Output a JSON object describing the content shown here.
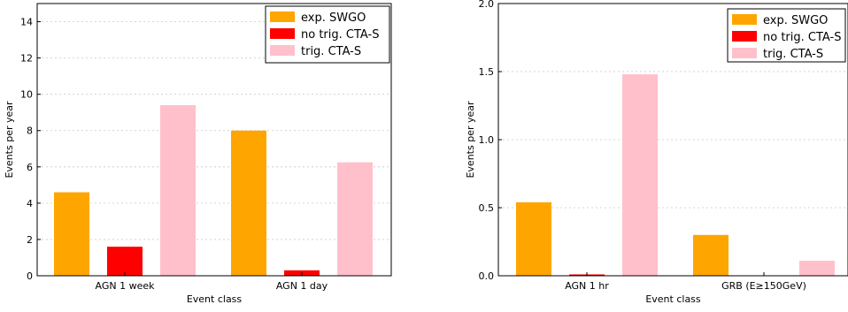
{
  "chart_data": [
    {
      "type": "bar",
      "categories": [
        "AGN 1 week",
        "AGN 1 day"
      ],
      "series": [
        {
          "name": "exp. SWGO",
          "values": [
            4.6,
            8.0
          ]
        },
        {
          "name": "no trig. CTA-S",
          "values": [
            1.6,
            0.3
          ]
        },
        {
          "name": "trig. CTA-S",
          "values": [
            9.4,
            6.25
          ]
        }
      ],
      "xlabel": "Event class",
      "ylabel": "Events per year",
      "ylim": [
        0,
        15
      ],
      "yticks": [
        "0",
        "2",
        "4",
        "6",
        "8",
        "10",
        "12",
        "14"
      ],
      "legend": "top-right",
      "grid": true
    },
    {
      "type": "bar",
      "categories": [
        "AGN 1 hr",
        "GRB (E≥150GeV)"
      ],
      "series": [
        {
          "name": "exp. SWGO",
          "values": [
            0.54,
            0.3
          ]
        },
        {
          "name": "no trig. CTA-S",
          "values": [
            0.01,
            0.0
          ]
        },
        {
          "name": "trig. CTA-S",
          "values": [
            1.48,
            0.11
          ]
        }
      ],
      "xlabel": "Event class",
      "ylabel": "Events per year",
      "ylim": [
        0,
        2.0
      ],
      "yticks": [
        "0.0",
        "0.5",
        "1.0",
        "1.5",
        "2.0"
      ],
      "legend": "top-right",
      "grid": true
    }
  ],
  "colors": {
    "exp. SWGO": "#ffa500",
    "no trig. CTA-S": "#ff0000",
    "trig. CTA-S": "#ffc0cb"
  }
}
